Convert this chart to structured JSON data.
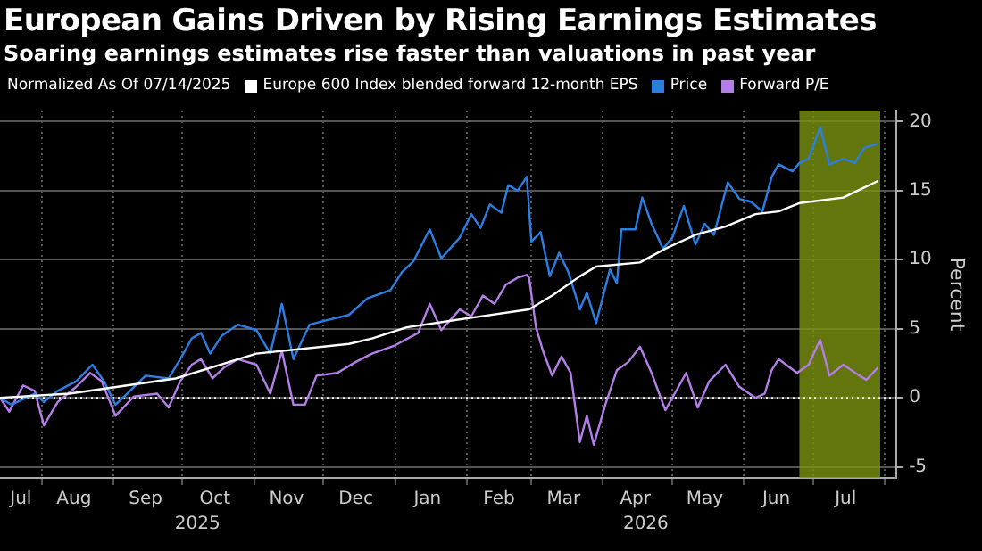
{
  "chart_data": {
    "type": "line",
    "title": "European Gains Driven by Rising Earnings Estimates",
    "subtitle": "Soaring earnings estimates rise faster than valuations in past year",
    "ylabel": "Percent",
    "legend_title": "Normalized As Of 07/14/2025",
    "legend": "top",
    "grid": true,
    "marker": "none",
    "line_style": "solid",
    "xlim": [
      "2025-07-14",
      "2026-08-06"
    ],
    "xticks": [
      {
        "value": "2025-07-23",
        "label": "Jul"
      },
      {
        "value": "2025-08-01",
        "label": null
      },
      {
        "value": "2025-08-15",
        "label": "Aug"
      },
      {
        "value": "2025-09-01",
        "label": null
      },
      {
        "value": "2025-09-15",
        "label": "Sep"
      },
      {
        "value": "2025-10-01",
        "label": null
      },
      {
        "value": "2025-10-15",
        "label": "Oct"
      },
      {
        "value": "2025-11-01",
        "label": null
      },
      {
        "value": "2025-11-15",
        "label": "Nov"
      },
      {
        "value": "2025-12-01",
        "label": null
      },
      {
        "value": "2025-12-15",
        "label": "Dec"
      },
      {
        "value": "2026-01-01",
        "label": null
      },
      {
        "value": "2026-01-15",
        "label": "Jan"
      },
      {
        "value": "2026-02-01",
        "label": null
      },
      {
        "value": "2026-02-15",
        "label": "Feb"
      },
      {
        "value": "2026-03-01",
        "label": null
      },
      {
        "value": "2026-03-15",
        "label": "Mar"
      },
      {
        "value": "2026-04-01",
        "label": null
      },
      {
        "value": "2026-04-15",
        "label": "Apr"
      },
      {
        "value": "2026-05-01",
        "label": null
      },
      {
        "value": "2026-05-15",
        "label": "May"
      },
      {
        "value": "2026-06-01",
        "label": null
      },
      {
        "value": "2026-06-15",
        "label": "Jun"
      },
      {
        "value": "2026-07-01",
        "label": null
      },
      {
        "value": "2026-07-15",
        "label": "Jul"
      },
      {
        "value": "2026-08-01",
        "label": null
      }
    ],
    "annotations": [
      "2025",
      "2026"
    ],
    "ylim": [
      -5.8,
      20.8
    ],
    "yticks": [
      -5,
      0,
      5,
      10,
      15,
      20
    ],
    "ref_lines": [
      {
        "axis": "y",
        "value": 0,
        "color": "#ffffff",
        "line_style": "dotted"
      }
    ],
    "bands": [
      {
        "axis": "x",
        "from": "2026-06-25",
        "to": "2026-07-30",
        "color": "#7a9410"
      }
    ],
    "series": [
      {
        "name": "Europe 600 Index blended forward 12-month EPS",
        "color": "#ffffff",
        "x": [
          "2025-07-14",
          "2025-08-13",
          "2025-09-28",
          "2025-11-02",
          "2025-12-12",
          "2025-12-22",
          "2026-01-06",
          "2026-02-03",
          "2026-02-28",
          "2026-03-10",
          "2026-03-22",
          "2026-03-29",
          "2026-04-17",
          "2026-04-28",
          "2026-05-11",
          "2026-05-24",
          "2026-06-06",
          "2026-06-16",
          "2026-06-25",
          "2026-07-14",
          "2026-07-19",
          "2026-07-29"
        ],
        "values": [
          0,
          0.3,
          1.4,
          3.2,
          3.9,
          4.3,
          5.1,
          5.8,
          6.4,
          7.4,
          8.8,
          9.5,
          9.8,
          10.8,
          11.8,
          12.4,
          13.3,
          13.5,
          14.1,
          14.5,
          14.9,
          15.7
        ]
      },
      {
        "name": "Price",
        "color": "#2b7fe3",
        "x": [
          "2025-07-14",
          "2025-07-19",
          "2025-07-24",
          "2025-07-29",
          "2025-08-02",
          "2025-08-08",
          "2025-08-16",
          "2025-08-23",
          "2025-08-28",
          "2025-09-02",
          "2025-09-07",
          "2025-09-15",
          "2025-09-25",
          "2025-09-30",
          "2025-10-05",
          "2025-10-09",
          "2025-10-13",
          "2025-10-18",
          "2025-10-25",
          "2025-11-02",
          "2025-11-08",
          "2025-11-13",
          "2025-11-18",
          "2025-11-25",
          "2025-12-02",
          "2025-12-12",
          "2025-12-20",
          "2025-12-30",
          "2026-01-04",
          "2026-01-09",
          "2026-01-16",
          "2026-01-21",
          "2026-01-29",
          "2026-02-03",
          "2026-02-07",
          "2026-02-11",
          "2026-02-16",
          "2026-02-19",
          "2026-02-23",
          "2026-02-27",
          "2026-03-01",
          "2026-03-05",
          "2026-03-09",
          "2026-03-13",
          "2026-03-17",
          "2026-03-22",
          "2026-03-25",
          "2026-03-29",
          "2026-04-04",
          "2026-04-07",
          "2026-04-09",
          "2026-04-15",
          "2026-04-18",
          "2026-04-22",
          "2026-04-27",
          "2026-05-01",
          "2026-05-06",
          "2026-05-11",
          "2026-05-15",
          "2026-05-19",
          "2026-05-25",
          "2026-05-30",
          "2026-06-04",
          "2026-06-09",
          "2026-06-13",
          "2026-06-16",
          "2026-06-22",
          "2026-06-25",
          "2026-06-29",
          "2026-07-04",
          "2026-07-08",
          "2026-07-14",
          "2026-07-19",
          "2026-07-23",
          "2026-07-27",
          "2026-07-29"
        ],
        "values": [
          0,
          -0.5,
          -0.1,
          0.3,
          -0.3,
          0.5,
          1.2,
          2.4,
          1.2,
          -0.5,
          0.3,
          1.6,
          1.4,
          2.8,
          4.3,
          4.7,
          3.2,
          4.5,
          5.3,
          4.9,
          3.2,
          6.8,
          2.8,
          5.3,
          5.6,
          6.0,
          7.2,
          7.8,
          9.1,
          9.9,
          12.2,
          10.1,
          11.6,
          13.3,
          12.3,
          14.0,
          13.4,
          15.4,
          15.0,
          16.0,
          11.3,
          12.0,
          8.8,
          10.5,
          9.1,
          6.4,
          7.6,
          5.4,
          9.3,
          8.3,
          12.2,
          12.2,
          14.5,
          12.6,
          10.8,
          11.6,
          13.9,
          11.1,
          12.6,
          11.8,
          15.6,
          14.4,
          14.2,
          13.5,
          16.0,
          16.9,
          16.4,
          17.0,
          17.3,
          19.6,
          16.9,
          17.3,
          17.0,
          18.1,
          18.3,
          18.4
        ]
      },
      {
        "name": "Forward P/E",
        "color": "#b47ee8",
        "x": [
          "2025-07-14",
          "2025-07-18",
          "2025-07-24",
          "2025-07-29",
          "2025-08-02",
          "2025-08-08",
          "2025-08-16",
          "2025-08-22",
          "2025-08-27",
          "2025-09-02",
          "2025-09-10",
          "2025-09-20",
          "2025-09-25",
          "2025-09-30",
          "2025-10-05",
          "2025-10-09",
          "2025-10-14",
          "2025-10-19",
          "2025-10-25",
          "2025-11-02",
          "2025-11-08",
          "2025-11-13",
          "2025-11-18",
          "2025-11-23",
          "2025-11-28",
          "2025-12-07",
          "2025-12-15",
          "2025-12-22",
          "2026-01-01",
          "2026-01-11",
          "2026-01-16",
          "2026-01-21",
          "2026-01-29",
          "2026-02-03",
          "2026-02-08",
          "2026-02-13",
          "2026-02-18",
          "2026-02-23",
          "2026-02-27",
          "2026-02-28",
          "2026-03-03",
          "2026-03-06",
          "2026-03-10",
          "2026-03-14",
          "2026-03-18",
          "2026-03-22",
          "2026-03-25",
          "2026-03-28",
          "2026-04-02",
          "2026-04-07",
          "2026-04-12",
          "2026-04-17",
          "2026-04-22",
          "2026-04-28",
          "2026-05-02",
          "2026-05-07",
          "2026-05-12",
          "2026-05-17",
          "2026-05-24",
          "2026-05-30",
          "2026-06-06",
          "2026-06-10",
          "2026-06-13",
          "2026-06-16",
          "2026-06-24",
          "2026-06-29",
          "2026-07-04",
          "2026-07-08",
          "2026-07-14",
          "2026-07-21",
          "2026-07-24",
          "2026-07-29"
        ],
        "values": [
          0,
          -1.0,
          0.9,
          0.5,
          -2.0,
          -0.3,
          0.8,
          1.8,
          1.2,
          -1.3,
          0.1,
          0.3,
          -0.7,
          1.2,
          2.4,
          2.8,
          1.4,
          2.2,
          2.8,
          2.4,
          0.3,
          3.4,
          -0.5,
          -0.5,
          1.6,
          1.8,
          2.6,
          3.2,
          3.8,
          4.7,
          6.8,
          4.9,
          6.4,
          5.9,
          7.4,
          6.8,
          8.2,
          8.7,
          8.9,
          8.7,
          5.1,
          3.4,
          1.6,
          3.0,
          1.8,
          -3.2,
          -1.3,
          -3.4,
          -0.5,
          2.0,
          2.6,
          3.7,
          1.8,
          -0.9,
          0.3,
          1.8,
          -0.7,
          1.2,
          2.4,
          0.8,
          0,
          0.3,
          2.0,
          2.8,
          1.8,
          2.4,
          4.2,
          1.6,
          2.4,
          1.6,
          1.3,
          2.2
        ]
      }
    ]
  }
}
